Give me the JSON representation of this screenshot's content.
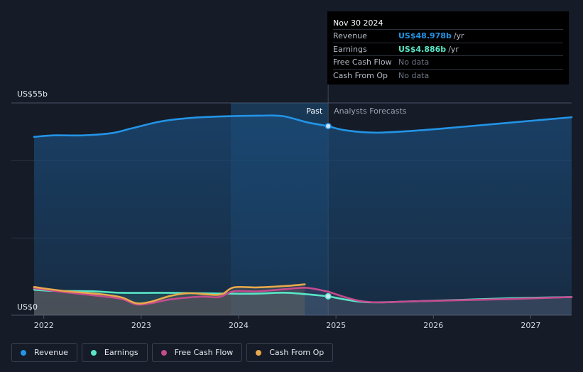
{
  "chart_data": {
    "type": "line",
    "y_axis": {
      "top_label": "US$55b",
      "bottom_label": "US$0",
      "ylim": [
        0,
        55
      ]
    },
    "x_ticks": [
      "2022",
      "2023",
      "2024",
      "2025",
      "2026",
      "2027"
    ],
    "x_range": [
      2021.9,
      2027.42
    ],
    "divider_x": 2024.92,
    "highlight_start_x": 2023.92,
    "past_label": "Past",
    "forecast_label": "Analysts Forecasts",
    "series": [
      {
        "name": "Revenue",
        "color": "#2394e6",
        "past": [
          [
            2021.9,
            46.2
          ],
          [
            2022.1,
            46.6
          ],
          [
            2022.4,
            46.6
          ],
          [
            2022.7,
            47.2
          ],
          [
            2022.9,
            48.4
          ],
          [
            2023.2,
            50.2
          ],
          [
            2023.5,
            51.1
          ],
          [
            2023.8,
            51.5
          ],
          [
            2024.2,
            51.7
          ],
          [
            2024.45,
            51.6
          ],
          [
            2024.7,
            50.0
          ],
          [
            2024.92,
            49.0
          ]
        ],
        "forecast": [
          [
            2024.92,
            49.0
          ],
          [
            2025.1,
            47.9
          ],
          [
            2025.4,
            47.3
          ],
          [
            2025.8,
            47.8
          ],
          [
            2026.2,
            48.6
          ],
          [
            2026.7,
            49.7
          ],
          [
            2027.42,
            51.3
          ]
        ]
      },
      {
        "name": "Earnings",
        "color": "#58e6c6",
        "past": [
          [
            2021.9,
            6.6
          ],
          [
            2022.1,
            6.3
          ],
          [
            2022.5,
            6.2
          ],
          [
            2022.8,
            5.8
          ],
          [
            2023.2,
            5.8
          ],
          [
            2023.6,
            5.7
          ],
          [
            2023.9,
            5.6
          ],
          [
            2024.2,
            5.6
          ],
          [
            2024.5,
            5.8
          ],
          [
            2024.92,
            4.9
          ]
        ],
        "forecast": [
          [
            2024.92,
            4.9
          ],
          [
            2025.3,
            3.4
          ],
          [
            2025.8,
            3.6
          ],
          [
            2026.3,
            4.0
          ],
          [
            2026.8,
            4.4
          ],
          [
            2027.42,
            4.7
          ]
        ]
      },
      {
        "name": "Free Cash Flow",
        "color": "#c34b8e",
        "past": [
          [
            2021.9,
            7.0
          ],
          [
            2022.2,
            6.0
          ],
          [
            2022.6,
            4.9
          ],
          [
            2022.8,
            4.2
          ],
          [
            2022.95,
            2.8
          ],
          [
            2023.1,
            3.1
          ],
          [
            2023.3,
            4.1
          ],
          [
            2023.6,
            4.8
          ],
          [
            2023.8,
            4.7
          ],
          [
            2023.95,
            6.2
          ],
          [
            2024.2,
            6.2
          ],
          [
            2024.5,
            6.8
          ],
          [
            2024.7,
            7.1
          ],
          [
            2024.92,
            6.1
          ]
        ],
        "forecast": [
          [
            2024.92,
            6.1
          ],
          [
            2025.3,
            3.5
          ],
          [
            2025.8,
            3.6
          ],
          [
            2026.3,
            3.9
          ],
          [
            2026.8,
            4.2
          ],
          [
            2027.42,
            4.7
          ]
        ]
      },
      {
        "name": "Cash From Op",
        "color": "#e9a94b",
        "past": [
          [
            2021.9,
            7.3
          ],
          [
            2022.2,
            6.3
          ],
          [
            2022.6,
            5.4
          ],
          [
            2022.8,
            4.6
          ],
          [
            2022.95,
            3.1
          ],
          [
            2023.1,
            3.5
          ],
          [
            2023.3,
            5.0
          ],
          [
            2023.5,
            5.7
          ],
          [
            2023.8,
            5.3
          ],
          [
            2023.95,
            7.2
          ],
          [
            2024.2,
            7.2
          ],
          [
            2024.5,
            7.6
          ],
          [
            2024.68,
            8.0
          ]
        ],
        "forecast": []
      }
    ],
    "marker_points": [
      {
        "series": "Revenue",
        "x": 2024.92,
        "y": 49.0
      },
      {
        "series": "Earnings",
        "x": 2024.92,
        "y": 4.9
      }
    ]
  },
  "tooltip": {
    "date": "Nov 30 2024",
    "rows": [
      {
        "name": "Revenue",
        "value": "US$48.978b",
        "unit": "/yr",
        "color": "#2394e6"
      },
      {
        "name": "Earnings",
        "value": "US$4.886b",
        "unit": "/yr",
        "color": "#58e6c6"
      },
      {
        "name": "Free Cash Flow",
        "value": "No data",
        "unit": "",
        "color": "#6e7685"
      },
      {
        "name": "Cash From Op",
        "value": "No data",
        "unit": "",
        "color": "#6e7685"
      }
    ]
  },
  "legend": [
    {
      "label": "Revenue",
      "color": "#2394e6"
    },
    {
      "label": "Earnings",
      "color": "#58e6c6"
    },
    {
      "label": "Free Cash Flow",
      "color": "#c34b8e"
    },
    {
      "label": "Cash From Op",
      "color": "#e9a94b"
    }
  ]
}
